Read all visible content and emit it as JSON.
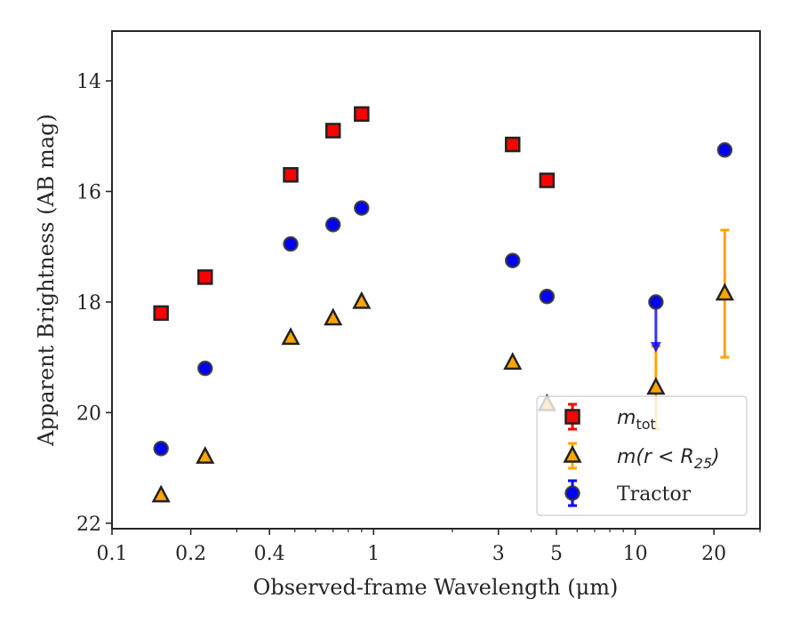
{
  "chart_data": {
    "type": "scatter",
    "title": "",
    "xlabel": "Observed-frame Wavelength (μm)",
    "ylabel": "Apparent Brightness (AB mag)",
    "xscale": "log",
    "xlim": [
      0.1,
      30
    ],
    "ylim": [
      22.1,
      13.1
    ],
    "y_inverted": true,
    "grid": false,
    "legend_position": "lower-right",
    "x_ticks": [
      {
        "value": 0.1,
        "label": "0.1"
      },
      {
        "value": 0.2,
        "label": "0.2"
      },
      {
        "value": 0.4,
        "label": "0.4"
      },
      {
        "value": 1,
        "label": "1"
      },
      {
        "value": 3,
        "label": "3"
      },
      {
        "value": 5,
        "label": "5"
      },
      {
        "value": 10,
        "label": "10"
      },
      {
        "value": 20,
        "label": "20"
      }
    ],
    "x_minor_ticks": [
      0.3,
      0.5,
      0.6,
      0.7,
      0.8,
      0.9,
      2,
      4,
      6,
      7,
      8,
      9,
      30
    ],
    "y_ticks": [
      {
        "value": 14,
        "label": "14"
      },
      {
        "value": 16,
        "label": "16"
      },
      {
        "value": 18,
        "label": "18"
      },
      {
        "value": 20,
        "label": "20"
      },
      {
        "value": 22,
        "label": "22"
      }
    ],
    "series": [
      {
        "name": "m_tot",
        "legend_base": "m",
        "legend_sub": "tot",
        "legend_extra": "",
        "marker": "square",
        "color": "#ff0000",
        "edge_color": "#222222",
        "x": [
          0.154,
          0.227,
          0.482,
          0.7,
          0.9,
          3.4,
          4.6
        ],
        "y": [
          18.2,
          17.55,
          15.7,
          14.9,
          14.6,
          15.15,
          15.8
        ],
        "yerr": [
          0.04,
          0.04,
          0.04,
          0.04,
          0.04,
          0.05,
          0.05
        ]
      },
      {
        "name": "m(r < R_25)",
        "legend_base": "m(r < R",
        "legend_sub": "25",
        "legend_extra": ")",
        "marker": "triangle",
        "color": "#ffa500",
        "edge_color": "#222222",
        "x": [
          0.154,
          0.227,
          0.482,
          0.7,
          0.9,
          3.4,
          4.6,
          12.0,
          22.0
        ],
        "y": [
          21.5,
          20.8,
          18.65,
          18.3,
          18.0,
          19.1,
          19.85,
          19.55,
          17.85
        ],
        "yerr": [
          0.04,
          0.04,
          0.04,
          0.04,
          0.04,
          0.05,
          0.1,
          0.75,
          1.15
        ]
      },
      {
        "name": "Tractor",
        "legend_base": "Tractor",
        "legend_sub": "",
        "legend_extra": "",
        "marker": "circle",
        "color": "#0000ff",
        "edge_color": "#333333",
        "x": [
          0.154,
          0.227,
          0.482,
          0.7,
          0.9,
          3.4,
          4.6,
          12.0,
          22.0
        ],
        "y": [
          20.65,
          19.2,
          16.95,
          16.6,
          16.3,
          17.25,
          17.9,
          18.0,
          15.25
        ],
        "yerr": [
          0.09,
          0.09,
          0.08,
          0.07,
          0.07,
          0.08,
          0.08,
          0,
          0.06
        ],
        "upper_limit_x": [
          12.0
        ]
      }
    ]
  }
}
